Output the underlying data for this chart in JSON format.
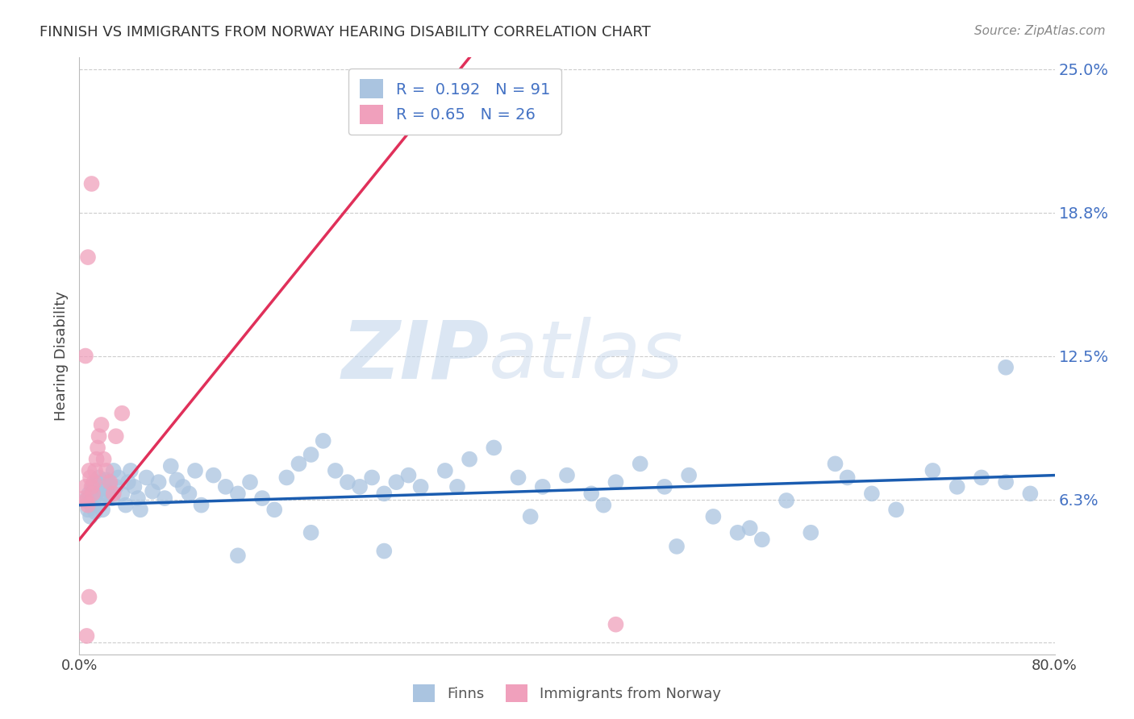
{
  "title": "FINNISH VS IMMIGRANTS FROM NORWAY HEARING DISABILITY CORRELATION CHART",
  "source": "Source: ZipAtlas.com",
  "ylabel": "Hearing Disability",
  "xlim": [
    0.0,
    0.8
  ],
  "ylim": [
    -0.005,
    0.255
  ],
  "ytick_vals": [
    0.0,
    0.0625,
    0.125,
    0.1875,
    0.25
  ],
  "ytick_labels": [
    "",
    "6.3%",
    "12.5%",
    "18.8%",
    "25.0%"
  ],
  "xtick_vals": [
    0.0,
    0.1,
    0.2,
    0.3,
    0.4,
    0.5,
    0.6,
    0.7,
    0.8
  ],
  "xtick_labels": [
    "0.0%",
    "",
    "",
    "",
    "",
    "",
    "",
    "",
    "80.0%"
  ],
  "finns_color": "#aac4e0",
  "norway_color": "#f0a0bc",
  "finns_line_color": "#1a5cb0",
  "norway_line_color": "#e0305a",
  "R_finns": 0.192,
  "N_finns": 91,
  "R_norway": 0.65,
  "N_norway": 26,
  "watermark_zip": "ZIP",
  "watermark_atlas": "atlas",
  "background_color": "#ffffff",
  "grid_color": "#cccccc",
  "finns_line_x0": 0.0,
  "finns_line_y0": 0.06,
  "finns_line_x1": 0.8,
  "finns_line_y1": 0.073,
  "norway_line_x0": 0.0,
  "norway_line_y0": 0.045,
  "norway_line_x1": 0.32,
  "norway_line_y1": 0.255,
  "finns_scatter_x": [
    0.005,
    0.007,
    0.008,
    0.009,
    0.01,
    0.011,
    0.012,
    0.013,
    0.014,
    0.015,
    0.016,
    0.017,
    0.018,
    0.019,
    0.02,
    0.022,
    0.024,
    0.025,
    0.027,
    0.028,
    0.03,
    0.032,
    0.035,
    0.038,
    0.04,
    0.042,
    0.045,
    0.048,
    0.05,
    0.055,
    0.06,
    0.065,
    0.07,
    0.075,
    0.08,
    0.085,
    0.09,
    0.095,
    0.1,
    0.11,
    0.12,
    0.13,
    0.14,
    0.15,
    0.16,
    0.17,
    0.18,
    0.19,
    0.2,
    0.21,
    0.22,
    0.23,
    0.24,
    0.25,
    0.26,
    0.27,
    0.28,
    0.3,
    0.32,
    0.34,
    0.36,
    0.38,
    0.4,
    0.42,
    0.44,
    0.46,
    0.48,
    0.5,
    0.52,
    0.54,
    0.56,
    0.58,
    0.6,
    0.63,
    0.65,
    0.67,
    0.7,
    0.72,
    0.74,
    0.76,
    0.78,
    0.62,
    0.55,
    0.49,
    0.43,
    0.37,
    0.31,
    0.25,
    0.19,
    0.13,
    0.76
  ],
  "finns_scatter_y": [
    0.062,
    0.058,
    0.065,
    0.055,
    0.06,
    0.068,
    0.063,
    0.057,
    0.07,
    0.066,
    0.072,
    0.06,
    0.067,
    0.058,
    0.065,
    0.071,
    0.064,
    0.069,
    0.063,
    0.075,
    0.068,
    0.072,
    0.065,
    0.06,
    0.07,
    0.075,
    0.068,
    0.063,
    0.058,
    0.072,
    0.066,
    0.07,
    0.063,
    0.077,
    0.071,
    0.068,
    0.065,
    0.075,
    0.06,
    0.073,
    0.068,
    0.065,
    0.07,
    0.063,
    0.058,
    0.072,
    0.078,
    0.082,
    0.088,
    0.075,
    0.07,
    0.068,
    0.072,
    0.065,
    0.07,
    0.073,
    0.068,
    0.075,
    0.08,
    0.085,
    0.072,
    0.068,
    0.073,
    0.065,
    0.07,
    0.078,
    0.068,
    0.073,
    0.055,
    0.048,
    0.045,
    0.062,
    0.048,
    0.072,
    0.065,
    0.058,
    0.075,
    0.068,
    0.072,
    0.07,
    0.065,
    0.078,
    0.05,
    0.042,
    0.06,
    0.055,
    0.068,
    0.04,
    0.048,
    0.038,
    0.12
  ],
  "norway_scatter_x": [
    0.004,
    0.005,
    0.006,
    0.007,
    0.008,
    0.009,
    0.01,
    0.011,
    0.012,
    0.013,
    0.014,
    0.015,
    0.016,
    0.018,
    0.02,
    0.022,
    0.025,
    0.028,
    0.03,
    0.035,
    0.005,
    0.007,
    0.01,
    0.44,
    0.006,
    0.008
  ],
  "norway_scatter_y": [
    0.063,
    0.068,
    0.062,
    0.06,
    0.075,
    0.072,
    0.068,
    0.065,
    0.07,
    0.075,
    0.08,
    0.085,
    0.09,
    0.095,
    0.08,
    0.075,
    0.07,
    0.065,
    0.09,
    0.1,
    0.125,
    0.168,
    0.2,
    0.008,
    0.003,
    0.02
  ]
}
